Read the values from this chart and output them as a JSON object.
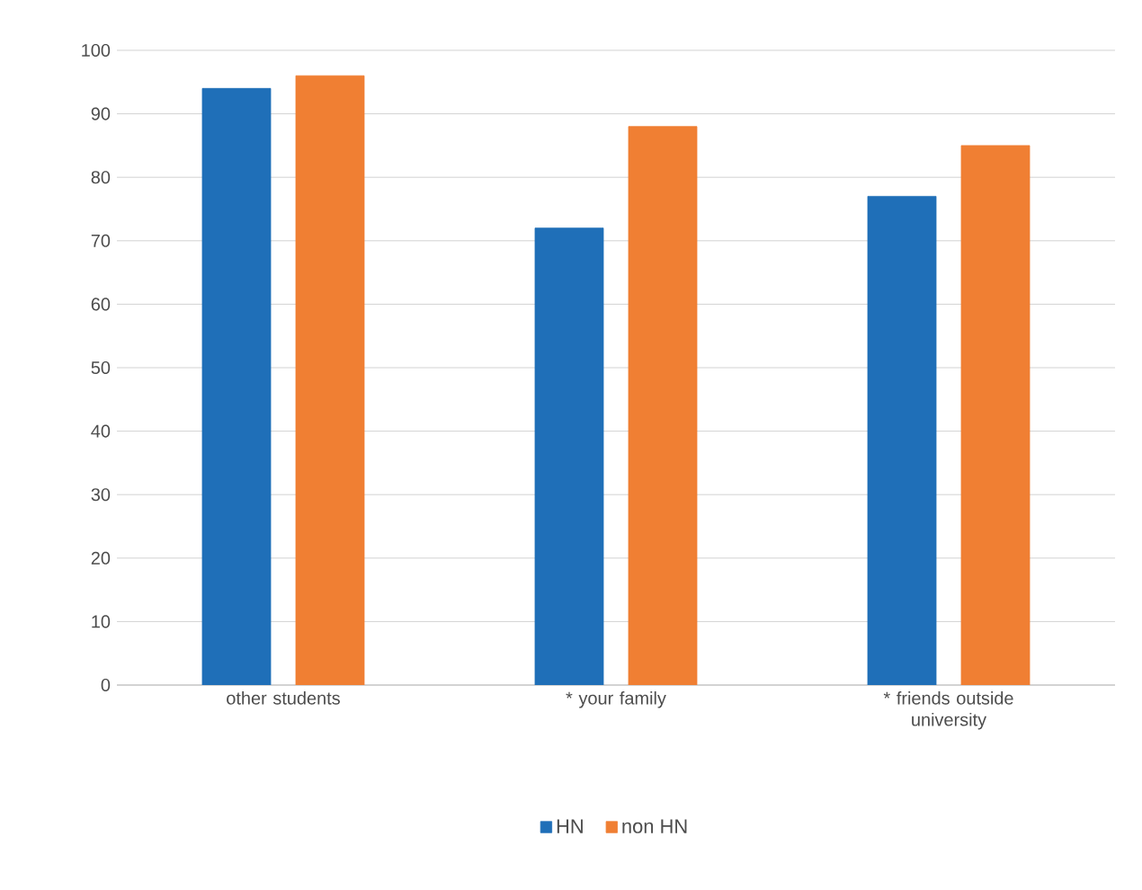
{
  "chart_data": {
    "type": "bar",
    "categories": [
      "other students",
      "* your family",
      "* friends outside university"
    ],
    "series": [
      {
        "name": "HN",
        "color": "#1f6fb8",
        "values": [
          94,
          72,
          77
        ]
      },
      {
        "name": "non HN",
        "color": "#f07f33",
        "values": [
          96,
          88,
          85
        ]
      }
    ],
    "ylim": [
      0,
      100
    ],
    "yticks": [
      0,
      10,
      20,
      30,
      40,
      50,
      60,
      70,
      80,
      90,
      100
    ],
    "grid": "y",
    "legend": "bottom"
  }
}
